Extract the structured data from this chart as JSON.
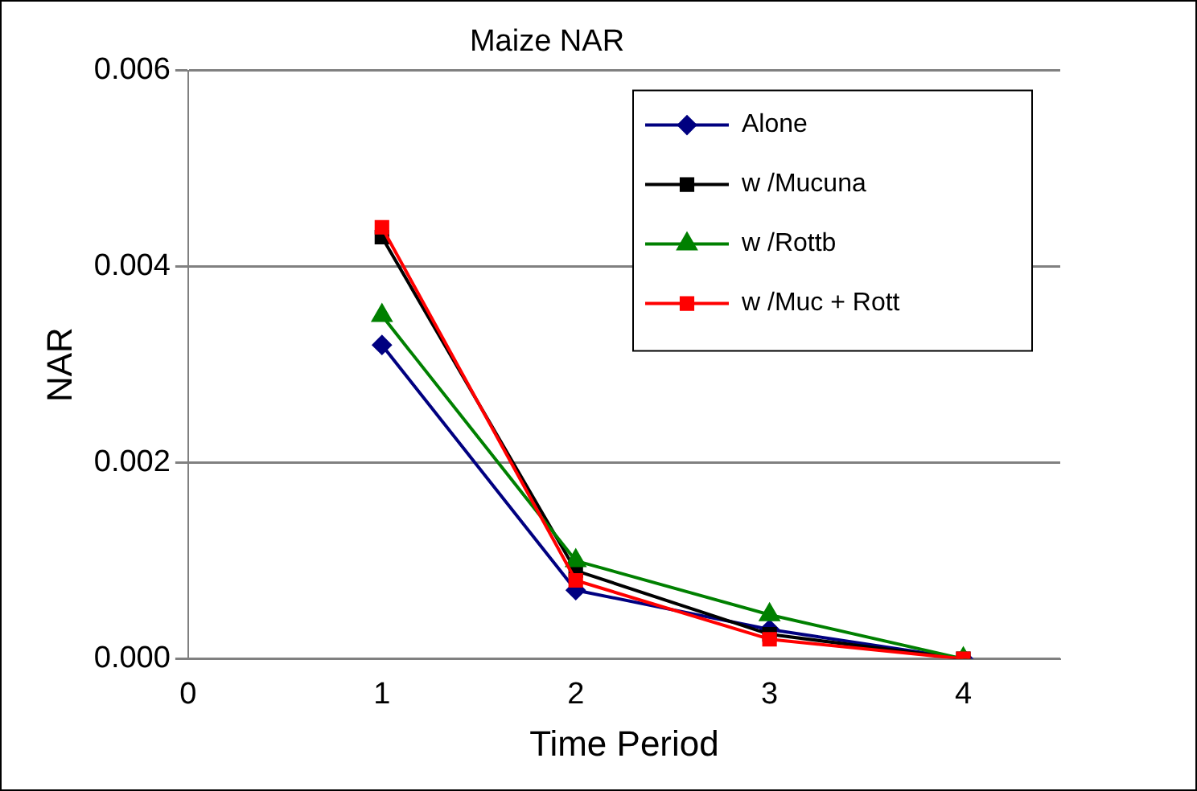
{
  "chart_data": {
    "type": "line",
    "title": "Maize NAR",
    "xlabel": "Time Period",
    "ylabel": "NAR",
    "x": [
      1,
      2,
      3,
      4
    ],
    "series": [
      {
        "name": "Alone",
        "color": "#000080",
        "marker": "diamond",
        "values": [
          0.0032,
          0.0007,
          0.0003,
          0
        ]
      },
      {
        "name": "w /Mucuna",
        "color": "#000000",
        "marker": "square",
        "values": [
          0.0043,
          0.0009,
          0.00025,
          0
        ]
      },
      {
        "name": "w /Rottb",
        "color": "#008000",
        "marker": "triangle",
        "values": [
          0.0035,
          0.001,
          0.00045,
          0
        ]
      },
      {
        "name": "w /Muc + Rott",
        "color": "#ff0000",
        "marker": "square",
        "values": [
          0.0044,
          0.0008,
          0.0002,
          0
        ]
      }
    ],
    "xlim": [
      0,
      4.5
    ],
    "xticks": [
      0,
      1,
      2,
      3,
      4
    ],
    "ylim": [
      0,
      0.006
    ],
    "yticks": [
      {
        "value": 0,
        "label": "0.000"
      },
      {
        "value": 0.002,
        "label": "0.002"
      },
      {
        "value": 0.004,
        "label": "0.004"
      },
      {
        "value": 0.006,
        "label": "0.006"
      }
    ],
    "grid": "y",
    "legend": "top right",
    "line_style": "solid"
  }
}
